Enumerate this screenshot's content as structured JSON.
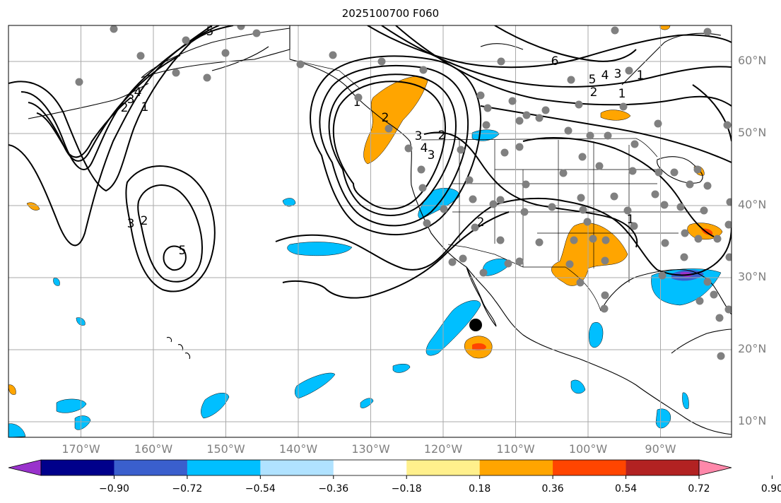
{
  "title": "2025100700 F060",
  "lat_labels": [
    {
      "text": "60°N",
      "lat": 60
    },
    {
      "text": "50°N",
      "lat": 50
    },
    {
      "text": "40°N",
      "lat": 40
    },
    {
      "text": "30°N",
      "lat": 30
    },
    {
      "text": "20°N",
      "lat": 20
    },
    {
      "text": "10°N",
      "lat": 10
    }
  ],
  "lon_labels": [
    {
      "text": "170°W",
      "lon": -170
    },
    {
      "text": "160°W",
      "lon": -160
    },
    {
      "text": "150°W",
      "lon": -150
    },
    {
      "text": "140°W",
      "lon": -140
    },
    {
      "text": "130°W",
      "lon": -130
    },
    {
      "text": "120°W",
      "lon": -120
    },
    {
      "text": "110°W",
      "lon": -110
    },
    {
      "text": "100°W",
      "lon": -100
    },
    {
      "text": "90°W",
      "lon": -90
    }
  ],
  "colorbar": {
    "colors": [
      "#9932cc",
      "#00008b",
      "#3a5fcd",
      "#00bfff",
      "#b0e2ff",
      "#ffffff",
      "#fff08c",
      "#ffa500",
      "#ff4500",
      "#b22222",
      "#ff88aa"
    ],
    "ticks": [
      "−0.90",
      "−0.72",
      "−0.54",
      "−0.36",
      "−0.18",
      "0.18",
      "0.36",
      "0.54",
      "0.72",
      "0.90"
    ]
  },
  "colors": {
    "grid": "#aaaaaa",
    "coast": "#000000",
    "station": "#808080",
    "orange": "#ffa500",
    "red": "#ff4500",
    "cyan": "#00bfff",
    "blue": "#3a5fcd",
    "purple": "#9932cc"
  },
  "contour_labels": [
    "5",
    "4",
    "3",
    "2",
    "1",
    "2",
    "3",
    "5",
    "4",
    "3",
    "2",
    "1",
    "6",
    "5",
    "4",
    "3",
    "2",
    "1",
    "1",
    "2",
    "1",
    "2",
    "3"
  ]
}
